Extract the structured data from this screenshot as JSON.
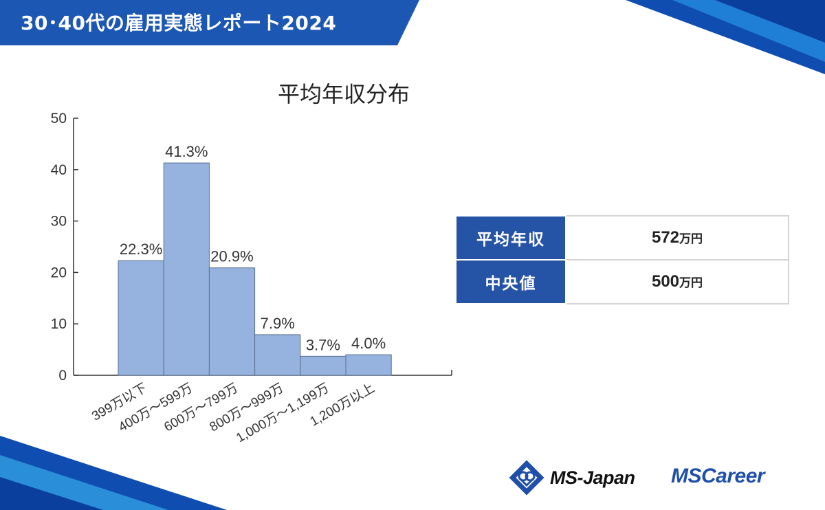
{
  "header": {
    "title": "30･40代の雇用実態レポート2024"
  },
  "chart_data": {
    "type": "bar",
    "title": "平均年収分布",
    "categories": [
      "399万以下",
      "400万～599万",
      "600万～799万",
      "800万～999万",
      "1,000万～1,199万",
      "1,200万以上"
    ],
    "values": [
      22.3,
      41.3,
      20.9,
      7.9,
      3.7,
      4.0
    ],
    "data_labels": [
      "22.3%",
      "41.3%",
      "20.9%",
      "7.9%",
      "3.7%",
      "4.0%"
    ],
    "y_ticks": [
      "0",
      "10",
      "20",
      "30",
      "40",
      "50"
    ],
    "ylim": [
      0,
      50
    ],
    "xlabel": "",
    "ylabel": "",
    "grid": false,
    "bar_color": "#95b3de",
    "bar_edge_color": "#5b6f8f"
  },
  "stats": {
    "rows": [
      {
        "label": "平均年収",
        "value": "572",
        "unit": "万円"
      },
      {
        "label": "中央値",
        "value": "500",
        "unit": "万円"
      }
    ]
  },
  "logos": {
    "msjapan": "MS-Japan",
    "mscareer": "MSCareer"
  },
  "colors": {
    "brand_blue": "#1f4fa8",
    "header_blue": "#1d57b4",
    "accent_light_blue": "#2a8ed8"
  }
}
